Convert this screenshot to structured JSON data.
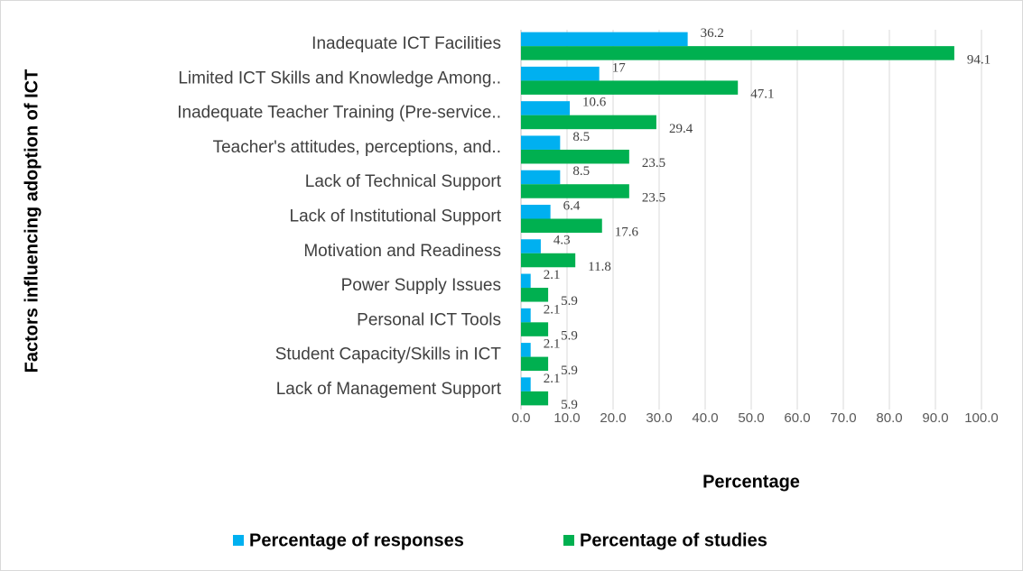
{
  "chart_data": {
    "type": "bar",
    "orientation": "horizontal",
    "y_axis_title": "Factors influencing adoption of ICT",
    "x_axis_title": "Percentage",
    "categories": [
      "Inadequate ICT Facilities",
      "Limited ICT Skills and Knowledge Among..",
      "Inadequate Teacher Training (Pre-service..",
      "Teacher's attitudes, perceptions, and..",
      "Lack of Technical Support",
      "Lack of Institutional Support",
      "Motivation and Readiness",
      "Power Supply Issues",
      "Personal ICT Tools",
      "Student Capacity/Skills in ICT",
      "Lack of Management Support"
    ],
    "series": [
      {
        "name": "Percentage of responses",
        "color": "#00b0f0",
        "values": [
          36.2,
          17,
          10.6,
          8.5,
          8.5,
          6.4,
          4.3,
          2.1,
          2.1,
          2.1,
          2.1
        ]
      },
      {
        "name": "Percentage of studies",
        "color": "#00b050",
        "values": [
          94.1,
          47.1,
          29.4,
          23.5,
          23.5,
          17.6,
          11.8,
          5.9,
          5.9,
          5.9,
          5.9
        ]
      }
    ],
    "xlim": [
      0,
      100
    ],
    "xticks": [
      {
        "value": 0,
        "label": "0.0"
      },
      {
        "value": 10,
        "label": "10.0"
      },
      {
        "value": 20,
        "label": "20.0"
      },
      {
        "value": 30,
        "label": "30.0"
      },
      {
        "value": 40,
        "label": "40.0"
      },
      {
        "value": 50,
        "label": "50.0"
      },
      {
        "value": 60,
        "label": "60.0"
      },
      {
        "value": 70,
        "label": "70.0"
      },
      {
        "value": 80,
        "label": "80.0"
      },
      {
        "value": 90,
        "label": "90.0"
      },
      {
        "value": 100,
        "label": "100.0"
      }
    ],
    "grid": true,
    "legend": "bottom"
  }
}
